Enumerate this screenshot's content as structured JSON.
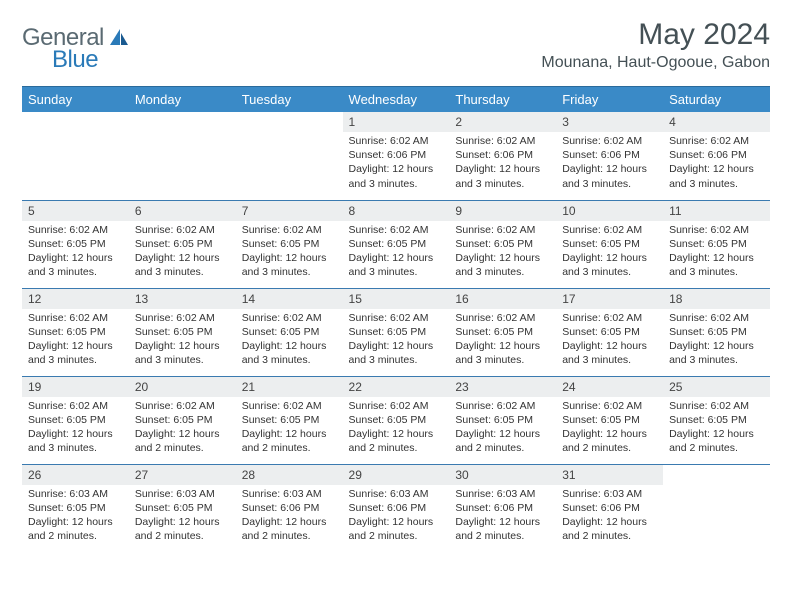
{
  "brand": {
    "part1": "General",
    "part2": "Blue"
  },
  "title": "May 2024",
  "location": "Mounana, Haut-Ogooue, Gabon",
  "day_headers": [
    "Sunday",
    "Monday",
    "Tuesday",
    "Wednesday",
    "Thursday",
    "Friday",
    "Saturday"
  ],
  "header_bg": "#3a8ac7",
  "divider_color": "#3a7ab0",
  "daynum_bg": "#eceeef",
  "weeks": [
    [
      null,
      null,
      null,
      {
        "n": "1",
        "sunrise": "6:02 AM",
        "sunset": "6:06 PM",
        "dl": "12 hours and 3 minutes."
      },
      {
        "n": "2",
        "sunrise": "6:02 AM",
        "sunset": "6:06 PM",
        "dl": "12 hours and 3 minutes."
      },
      {
        "n": "3",
        "sunrise": "6:02 AM",
        "sunset": "6:06 PM",
        "dl": "12 hours and 3 minutes."
      },
      {
        "n": "4",
        "sunrise": "6:02 AM",
        "sunset": "6:06 PM",
        "dl": "12 hours and 3 minutes."
      }
    ],
    [
      {
        "n": "5",
        "sunrise": "6:02 AM",
        "sunset": "6:05 PM",
        "dl": "12 hours and 3 minutes."
      },
      {
        "n": "6",
        "sunrise": "6:02 AM",
        "sunset": "6:05 PM",
        "dl": "12 hours and 3 minutes."
      },
      {
        "n": "7",
        "sunrise": "6:02 AM",
        "sunset": "6:05 PM",
        "dl": "12 hours and 3 minutes."
      },
      {
        "n": "8",
        "sunrise": "6:02 AM",
        "sunset": "6:05 PM",
        "dl": "12 hours and 3 minutes."
      },
      {
        "n": "9",
        "sunrise": "6:02 AM",
        "sunset": "6:05 PM",
        "dl": "12 hours and 3 minutes."
      },
      {
        "n": "10",
        "sunrise": "6:02 AM",
        "sunset": "6:05 PM",
        "dl": "12 hours and 3 minutes."
      },
      {
        "n": "11",
        "sunrise": "6:02 AM",
        "sunset": "6:05 PM",
        "dl": "12 hours and 3 minutes."
      }
    ],
    [
      {
        "n": "12",
        "sunrise": "6:02 AM",
        "sunset": "6:05 PM",
        "dl": "12 hours and 3 minutes."
      },
      {
        "n": "13",
        "sunrise": "6:02 AM",
        "sunset": "6:05 PM",
        "dl": "12 hours and 3 minutes."
      },
      {
        "n": "14",
        "sunrise": "6:02 AM",
        "sunset": "6:05 PM",
        "dl": "12 hours and 3 minutes."
      },
      {
        "n": "15",
        "sunrise": "6:02 AM",
        "sunset": "6:05 PM",
        "dl": "12 hours and 3 minutes."
      },
      {
        "n": "16",
        "sunrise": "6:02 AM",
        "sunset": "6:05 PM",
        "dl": "12 hours and 3 minutes."
      },
      {
        "n": "17",
        "sunrise": "6:02 AM",
        "sunset": "6:05 PM",
        "dl": "12 hours and 3 minutes."
      },
      {
        "n": "18",
        "sunrise": "6:02 AM",
        "sunset": "6:05 PM",
        "dl": "12 hours and 3 minutes."
      }
    ],
    [
      {
        "n": "19",
        "sunrise": "6:02 AM",
        "sunset": "6:05 PM",
        "dl": "12 hours and 3 minutes."
      },
      {
        "n": "20",
        "sunrise": "6:02 AM",
        "sunset": "6:05 PM",
        "dl": "12 hours and 2 minutes."
      },
      {
        "n": "21",
        "sunrise": "6:02 AM",
        "sunset": "6:05 PM",
        "dl": "12 hours and 2 minutes."
      },
      {
        "n": "22",
        "sunrise": "6:02 AM",
        "sunset": "6:05 PM",
        "dl": "12 hours and 2 minutes."
      },
      {
        "n": "23",
        "sunrise": "6:02 AM",
        "sunset": "6:05 PM",
        "dl": "12 hours and 2 minutes."
      },
      {
        "n": "24",
        "sunrise": "6:02 AM",
        "sunset": "6:05 PM",
        "dl": "12 hours and 2 minutes."
      },
      {
        "n": "25",
        "sunrise": "6:02 AM",
        "sunset": "6:05 PM",
        "dl": "12 hours and 2 minutes."
      }
    ],
    [
      {
        "n": "26",
        "sunrise": "6:03 AM",
        "sunset": "6:05 PM",
        "dl": "12 hours and 2 minutes."
      },
      {
        "n": "27",
        "sunrise": "6:03 AM",
        "sunset": "6:05 PM",
        "dl": "12 hours and 2 minutes."
      },
      {
        "n": "28",
        "sunrise": "6:03 AM",
        "sunset": "6:06 PM",
        "dl": "12 hours and 2 minutes."
      },
      {
        "n": "29",
        "sunrise": "6:03 AM",
        "sunset": "6:06 PM",
        "dl": "12 hours and 2 minutes."
      },
      {
        "n": "30",
        "sunrise": "6:03 AM",
        "sunset": "6:06 PM",
        "dl": "12 hours and 2 minutes."
      },
      {
        "n": "31",
        "sunrise": "6:03 AM",
        "sunset": "6:06 PM",
        "dl": "12 hours and 2 minutes."
      },
      null
    ]
  ],
  "labels": {
    "sunrise": "Sunrise: ",
    "sunset": "Sunset: ",
    "daylight": "Daylight: "
  }
}
